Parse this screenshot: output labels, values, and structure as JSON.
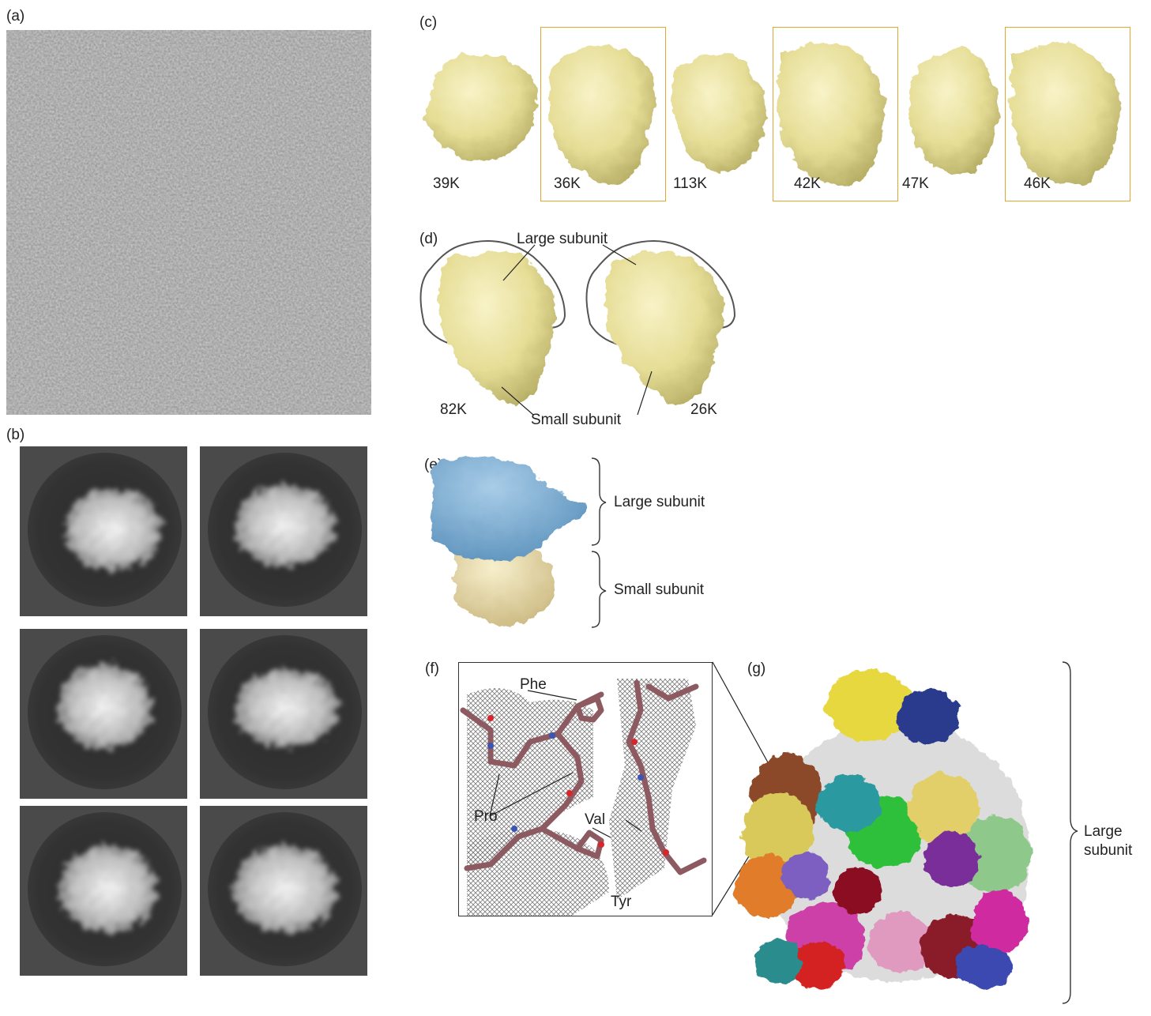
{
  "panels": {
    "a": {
      "label": "(a)"
    },
    "b": {
      "label": "(b)"
    },
    "c": {
      "label": "(c)",
      "classes": [
        {
          "count": "39K",
          "boxed": false
        },
        {
          "count": "36K",
          "boxed": true
        },
        {
          "count": "113K",
          "boxed": false
        },
        {
          "count": "42K",
          "boxed": true
        },
        {
          "count": "47K",
          "boxed": false
        },
        {
          "count": "46K",
          "boxed": true
        }
      ]
    },
    "d": {
      "label": "(d)",
      "large_subunit": "Large subunit",
      "small_subunit": "Small subunit",
      "left_count": "82K",
      "right_count": "26K"
    },
    "e": {
      "label": "(e)",
      "large_subunit": "Large subunit",
      "small_subunit": "Small subunit"
    },
    "f": {
      "label": "(f)",
      "residues": {
        "phe": "Phe",
        "pro": "Pro",
        "val": "Val",
        "tyr": "Tyr"
      }
    },
    "g": {
      "label": "(g)",
      "bracket_label_line1": "Large",
      "bracket_label_line2": "subunit"
    }
  },
  "colors": {
    "map_yellow": "#eee7a6",
    "map_shadow": "#b9b26a",
    "frame_orange": "#e0a731",
    "large_blue": "#88b6d9",
    "small_cream": "#efe3b5",
    "stick_mauve": "#8c5a60",
    "mesh_gray": "#8a8a8a"
  }
}
